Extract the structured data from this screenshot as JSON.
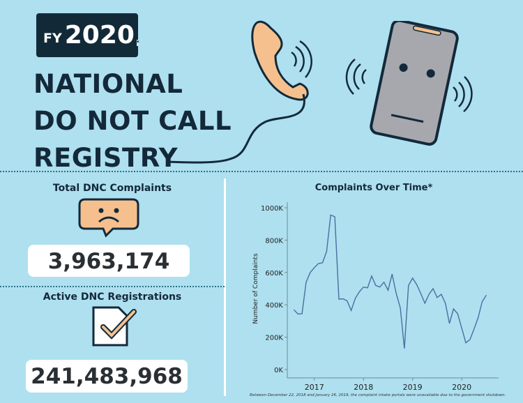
{
  "header": {
    "fy_prefix": "FY",
    "fy_year": "2020",
    "fy_dropdown_icon": "dropdown-arrow-icon",
    "title_lines": [
      "NATIONAL",
      "DO NOT CALL",
      "REGISTRY"
    ]
  },
  "kpis": {
    "complaints": {
      "label": "Total DNC Complaints",
      "value": "3,963,174",
      "icon": "sad-face-speech-bubble-icon"
    },
    "registrations": {
      "label": "Active DNC Registrations",
      "value": "241,483,968",
      "icon": "checked-document-icon"
    }
  },
  "colors": {
    "background": "#aee0ef",
    "dark": "#122a38",
    "accent": "#f5c08e",
    "line": "#4a6ea0"
  },
  "chart_data": {
    "type": "line",
    "title": "Complaints Over Time*",
    "ylabel": "Number of Complaints",
    "xlabel": "",
    "ylim": [
      0,
      1000000
    ],
    "yticks": [
      "0K",
      "200K",
      "400K",
      "600K",
      "800K",
      "1000K"
    ],
    "xticks": [
      "2017",
      "2018",
      "2019",
      "2020"
    ],
    "grid": false,
    "x": [
      "2016-08",
      "2016-09",
      "2016-10",
      "2016-11",
      "2016-12",
      "2017-01",
      "2017-02",
      "2017-03",
      "2017-04",
      "2017-05",
      "2017-06",
      "2017-07",
      "2017-08",
      "2017-09",
      "2017-10",
      "2017-11",
      "2017-12",
      "2018-01",
      "2018-02",
      "2018-03",
      "2018-04",
      "2018-05",
      "2018-06",
      "2018-07",
      "2018-08",
      "2018-09",
      "2018-10",
      "2018-11",
      "2018-12",
      "2019-01",
      "2019-02",
      "2019-03",
      "2019-04",
      "2019-05",
      "2019-06",
      "2019-07",
      "2019-08",
      "2019-09",
      "2019-10",
      "2019-11",
      "2019-12",
      "2020-01",
      "2020-02",
      "2020-03",
      "2020-04",
      "2020-05",
      "2020-06",
      "2020-07"
    ],
    "values": [
      370000,
      343000,
      345000,
      540000,
      600000,
      630000,
      655000,
      660000,
      730000,
      955000,
      945000,
      435000,
      437000,
      425000,
      365000,
      440000,
      480000,
      510000,
      505000,
      578000,
      520000,
      510000,
      540000,
      490000,
      590000,
      470000,
      380000,
      130000,
      520000,
      565000,
      525000,
      470000,
      410000,
      465000,
      500000,
      445000,
      465000,
      410000,
      285000,
      375000,
      345000,
      255000,
      165000,
      185000,
      250000,
      320000,
      420000,
      460000
    ],
    "footnote": "Between December 22, 2018 and January 26, 2019, the complaint intake portals were unavailable due to the government shutdown."
  }
}
